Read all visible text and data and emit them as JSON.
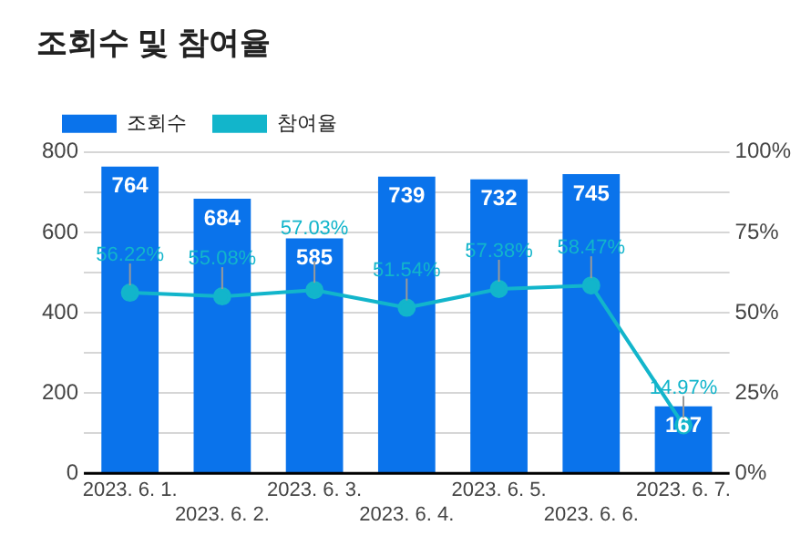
{
  "chart_data": {
    "type": "bar",
    "title": "조회수 및 참여율",
    "categories": [
      "2023. 6. 1.",
      "2023. 6. 2.",
      "2023. 6. 3.",
      "2023. 6. 4.",
      "2023. 6. 5.",
      "2023. 6. 6.",
      "2023. 6. 7."
    ],
    "series": [
      {
        "name": "조회수",
        "color": "#0a73eb",
        "values": [
          764,
          684,
          585,
          739,
          732,
          745,
          167
        ]
      },
      {
        "name": "참여율",
        "type": "line",
        "axis": "y2",
        "color": "#12b5cb",
        "marker": "circle",
        "values": [
          56.22,
          55.08,
          57.03,
          51.54,
          57.38,
          58.47,
          14.97
        ],
        "value_labels": [
          "56.22%",
          "55.08%",
          "57.03%",
          "51.54%",
          "57.38%",
          "58.47%",
          "14.97%"
        ]
      }
    ],
    "data_labels": true,
    "ylim": [
      0,
      800
    ],
    "yticks": [
      0,
      {
        "value": 100,
        "label": null
      },
      200,
      {
        "value": 300,
        "label": null
      },
      400,
      {
        "value": 500,
        "label": null
      },
      600,
      {
        "value": 700,
        "label": null
      },
      800
    ],
    "y2lim": [
      0,
      100
    ],
    "y2ticks": [
      {
        "value": 0,
        "label": "0%"
      },
      {
        "value": 25,
        "label": "25%"
      },
      {
        "value": 50,
        "label": "50%"
      },
      {
        "value": 75,
        "label": "75%"
      },
      {
        "value": 100,
        "label": "100%"
      }
    ],
    "grid": "y",
    "legend": "top left"
  }
}
